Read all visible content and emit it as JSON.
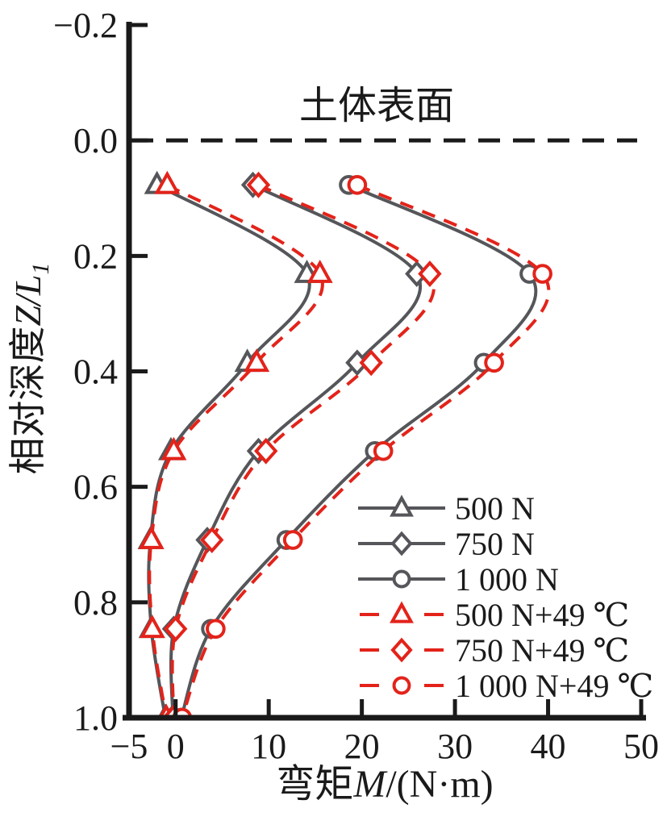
{
  "colors": {
    "gray": "#55565a",
    "red": "#e3231a",
    "black": "#1a1a1a"
  },
  "axes": {
    "x_label_cjk": "弯矩",
    "x_label_var": "M",
    "x_label_unit": "/(N·m)",
    "y_label_cjk": "相对深度",
    "y_label_var": "Z/L",
    "y_label_sub": "1"
  },
  "chart_data": {
    "type": "line",
    "title": "",
    "xlabel": "弯矩M/(N·m)",
    "ylabel": "相对深度Z/L1",
    "xlim": [
      -5,
      50
    ],
    "ylim": [
      -0.2,
      1.0
    ],
    "y_axis_inverted": true,
    "grid": false,
    "legend_position": "inside lower-right",
    "x_ticks": [
      {
        "value": -5,
        "label": "−5",
        "mark": false
      },
      {
        "value": 0,
        "label": "0",
        "mark": true
      },
      {
        "value": 10,
        "label": "10",
        "mark": true
      },
      {
        "value": 20,
        "label": "20",
        "mark": true
      },
      {
        "value": 30,
        "label": "30",
        "mark": true
      },
      {
        "value": 40,
        "label": "40",
        "mark": true
      },
      {
        "value": 50,
        "label": "50",
        "mark": true
      }
    ],
    "y_ticks": [
      {
        "value": -0.2,
        "label": "−0.2"
      },
      {
        "value": 0.0,
        "label": "0.0"
      },
      {
        "value": 0.2,
        "label": "0.2"
      },
      {
        "value": 0.4,
        "label": "0.4"
      },
      {
        "value": 0.6,
        "label": "0.6"
      },
      {
        "value": 0.8,
        "label": "0.8"
      },
      {
        "value": 1.0,
        "label": "1.0"
      }
    ],
    "soil_surface": {
      "z": 0.0,
      "label": "土体表面"
    },
    "depths_z": [
      0.077,
      0.231,
      0.385,
      0.538,
      0.692,
      0.846,
      1.0
    ],
    "series": [
      {
        "name": "500 N",
        "color": "gray",
        "marker": "triangle",
        "dashed": false,
        "moments": [
          -2.0,
          14.1,
          7.7,
          -0.5,
          -2.7,
          -2.6,
          -1.1
        ]
      },
      {
        "name": "750 N",
        "color": "gray",
        "marker": "diamond",
        "dashed": false,
        "moments": [
          8.3,
          25.9,
          19.5,
          8.9,
          3.4,
          -0.2,
          -0.3
        ]
      },
      {
        "name": "1 000 N",
        "color": "gray",
        "marker": "circle",
        "dashed": false,
        "moments": [
          18.6,
          38.0,
          33.1,
          21.4,
          11.9,
          3.8,
          0.6
        ]
      },
      {
        "name": "500 N+49 ℃",
        "color": "red",
        "marker": "triangle",
        "dashed": true,
        "moments": [
          -0.9,
          15.5,
          8.7,
          -0.2,
          -2.6,
          -2.5,
          -1.0
        ]
      },
      {
        "name": "750 N+49 ℃",
        "color": "red",
        "marker": "diamond",
        "dashed": true,
        "moments": [
          8.9,
          27.3,
          21.0,
          9.7,
          3.9,
          0.0,
          -0.2
        ]
      },
      {
        "name": "1 000 N+49 ℃",
        "color": "red",
        "marker": "circle",
        "dashed": true,
        "moments": [
          19.5,
          39.4,
          34.2,
          22.3,
          12.6,
          4.3,
          0.7
        ]
      }
    ]
  }
}
